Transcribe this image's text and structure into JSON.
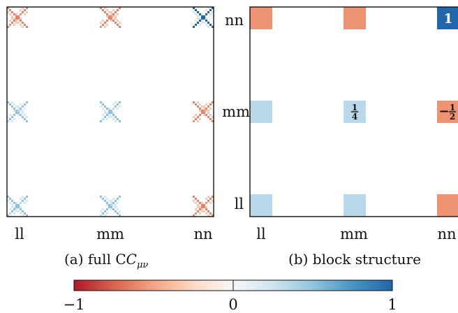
{
  "chart_data": [
    {
      "type": "heatmap",
      "panel": "(a)",
      "caption": "(a) full C",
      "caption_symbol": "C",
      "caption_subscript": "μν",
      "xticks": [
        "ll",
        "mm",
        "nn"
      ],
      "blocks": [
        {
          "row": "nn",
          "col": "ll",
          "pattern": "cross",
          "sign": -1,
          "level": 0.5
        },
        {
          "row": "nn",
          "col": "mm",
          "pattern": "cross",
          "sign": -1,
          "level": 0.5
        },
        {
          "row": "nn",
          "col": "nn",
          "pattern": "cross",
          "sign": 1,
          "level": 1.0
        },
        {
          "row": "mm",
          "col": "ll",
          "pattern": "cross",
          "sign": 1,
          "level": 0.25
        },
        {
          "row": "mm",
          "col": "mm",
          "pattern": "cross",
          "sign": 1,
          "level": 0.25
        },
        {
          "row": "mm",
          "col": "nn",
          "pattern": "cross",
          "sign": -1,
          "level": 0.5
        },
        {
          "row": "ll",
          "col": "ll",
          "pattern": "cross",
          "sign": 1,
          "level": 0.25
        },
        {
          "row": "ll",
          "col": "mm",
          "pattern": "cross",
          "sign": 1,
          "level": 0.25
        },
        {
          "row": "ll",
          "col": "nn",
          "pattern": "cross",
          "sign": -1,
          "level": 0.5
        }
      ]
    },
    {
      "type": "heatmap",
      "panel": "(b)",
      "caption": "(b) block structure",
      "xticks": [
        "ll",
        "mm",
        "nn"
      ],
      "yticks": [
        "nn",
        "mm",
        "ll"
      ],
      "cells": [
        {
          "row": "nn",
          "col": "ll",
          "value": -0.5,
          "label": ""
        },
        {
          "row": "nn",
          "col": "mm",
          "value": -0.5,
          "label": ""
        },
        {
          "row": "nn",
          "col": "nn",
          "value": 1,
          "label": "1"
        },
        {
          "row": "mm",
          "col": "ll",
          "value": 0.25,
          "label": ""
        },
        {
          "row": "mm",
          "col": "mm",
          "value": 0.25,
          "label": "1/4",
          "num": "1",
          "den": "4",
          "sign": ""
        },
        {
          "row": "mm",
          "col": "nn",
          "value": -0.5,
          "label": "−1/2",
          "num": "1",
          "den": "2",
          "sign": "−"
        },
        {
          "row": "ll",
          "col": "ll",
          "value": 0.25,
          "label": ""
        },
        {
          "row": "ll",
          "col": "mm",
          "value": 0.25,
          "label": ""
        },
        {
          "row": "ll",
          "col": "nn",
          "value": -0.5,
          "label": ""
        }
      ]
    }
  ],
  "colorbar": {
    "min": -1,
    "max": 1,
    "ticks": [
      "−1",
      "0",
      "1"
    ],
    "colors": {
      "neg_full": "#b2182b",
      "neg_half": "#ee9472",
      "zero": "#ffffff",
      "pos_quarter": "#b9d8ea",
      "pos_full": "#2166ac"
    }
  }
}
